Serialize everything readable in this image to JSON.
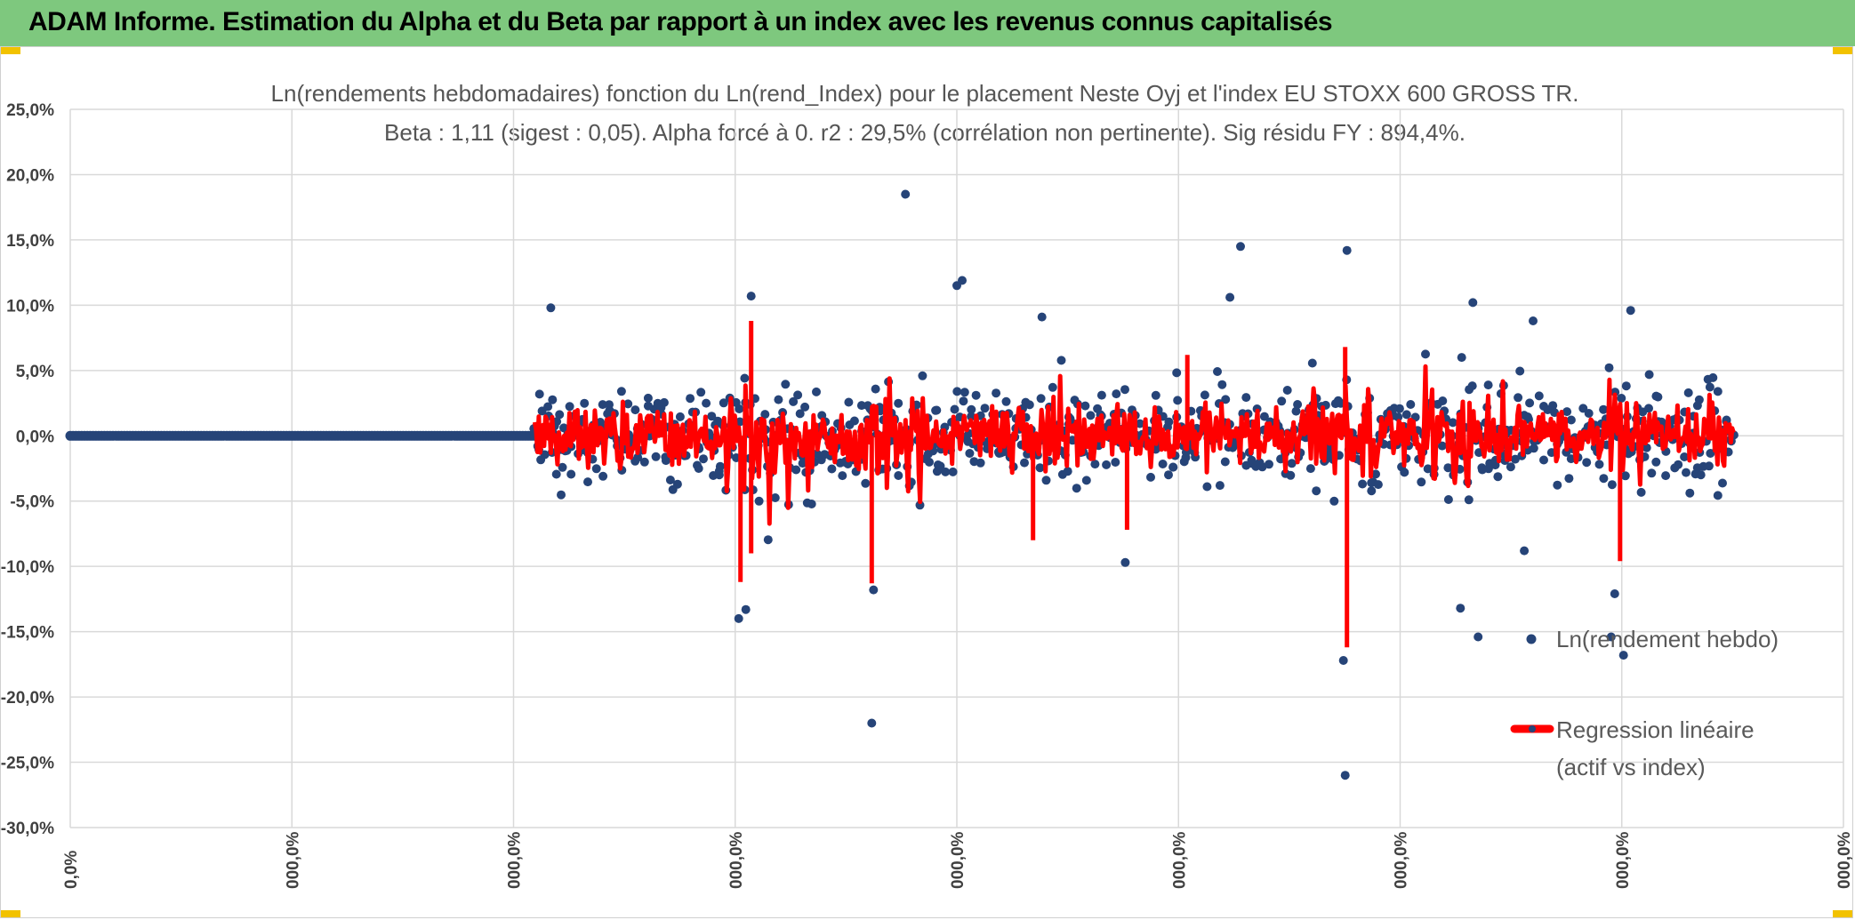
{
  "header": {
    "title": "ADAM Informe. Estimation du Alpha et du Beta par rapport à un index avec les revenus connus capitalisés"
  },
  "colors": {
    "header_bg": "#7ec87e",
    "scatter": "#264478",
    "regression": "#ff0000",
    "grid": "#d9d9d9",
    "accent": "#f2c200"
  },
  "chart_data": {
    "type": "scatter",
    "title": "Ln(rendements hebdomadaires) fonction du Ln(rend_Index) pour le placement Neste Oyj et l'index EU STOXX 600 GROSS TR.",
    "subtitle": "Beta : 1,11 (sigest : 0,05). Alpha forcé à 0. r2 : 29,5% (corrélation non pertinente). Sig résidu FY : 894,4%.",
    "ylim": [
      -30,
      25
    ],
    "y_ticks": [
      "25,0%",
      "20,0%",
      "15,0%",
      "10,0%",
      "5,0%",
      "0,0%",
      "-5,0%",
      "-10,0%",
      "-15,0%",
      "-20,0%",
      "-25,0%",
      "-30,0%"
    ],
    "x_ticks": [
      "0,0%",
      "000,0%",
      "000,0%",
      "000,0%",
      "000,0%",
      "000,0%",
      "000,0%",
      "000,0%",
      "000,0%"
    ],
    "x_range": [
      0,
      1
    ],
    "data_start_x": 0.262,
    "data_end_x": 0.938,
    "beta": 1.11,
    "outliers": [
      {
        "x": 0.271,
        "y": 9.8
      },
      {
        "x": 0.377,
        "y": -14.0
      },
      {
        "x": 0.381,
        "y": -13.3
      },
      {
        "x": 0.384,
        "y": 10.7
      },
      {
        "x": 0.471,
        "y": 18.5
      },
      {
        "x": 0.452,
        "y": -22.0
      },
      {
        "x": 0.453,
        "y": -11.8
      },
      {
        "x": 0.5,
        "y": 11.5
      },
      {
        "x": 0.503,
        "y": 11.9
      },
      {
        "x": 0.548,
        "y": 9.1
      },
      {
        "x": 0.595,
        "y": -9.7
      },
      {
        "x": 0.654,
        "y": 10.6
      },
      {
        "x": 0.66,
        "y": 14.5
      },
      {
        "x": 0.718,
        "y": -17.2
      },
      {
        "x": 0.72,
        "y": 14.2
      },
      {
        "x": 0.719,
        "y": -26.0
      },
      {
        "x": 0.784,
        "y": -13.2
      },
      {
        "x": 0.791,
        "y": 10.2
      },
      {
        "x": 0.794,
        "y": -15.4
      },
      {
        "x": 0.869,
        "y": -15.4
      },
      {
        "x": 0.871,
        "y": -12.1
      },
      {
        "x": 0.876,
        "y": -16.8
      },
      {
        "x": 0.82,
        "y": -8.8
      },
      {
        "x": 0.88,
        "y": 9.6
      },
      {
        "x": 0.825,
        "y": 8.8
      }
    ],
    "series": [
      {
        "name": "Ln(rendement hebdo)",
        "kind": "scatter"
      },
      {
        "name": "Regression linéaire (actif vs index)",
        "kind": "line"
      }
    ],
    "legend": {
      "scatter_label": "Ln(rendement hebdo)",
      "line_label_1": "Regression linéaire",
      "line_label_2": "(actif vs index)"
    }
  }
}
